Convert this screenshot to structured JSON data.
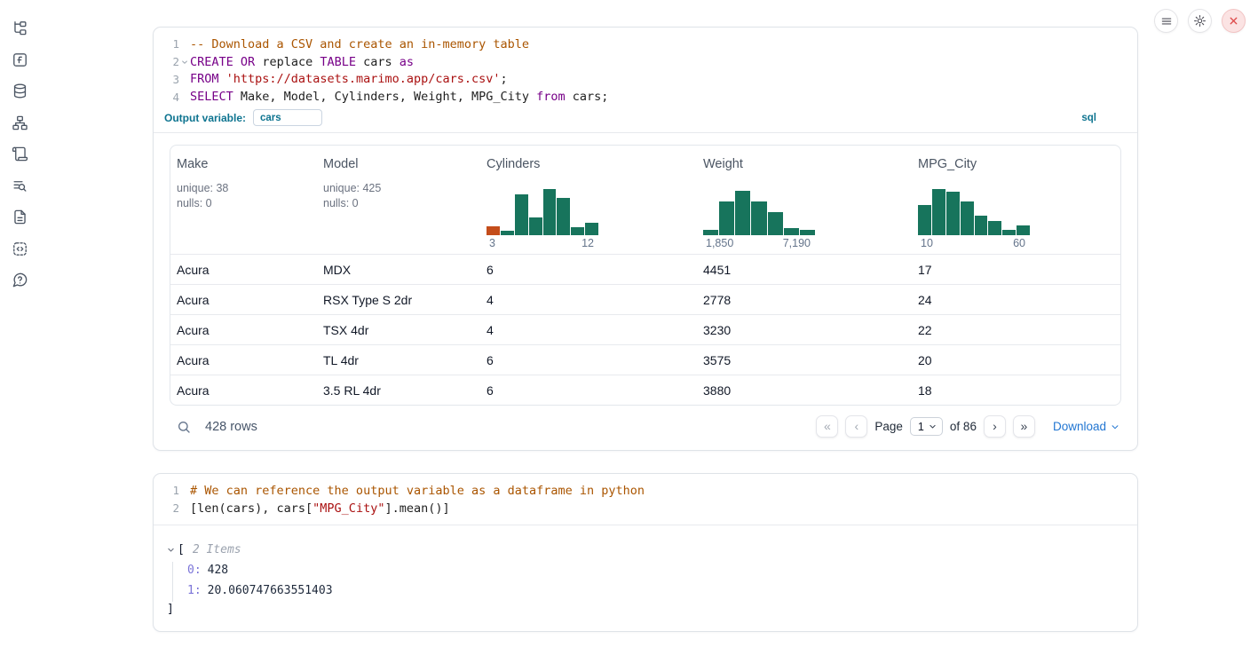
{
  "topbar": {
    "buttons": [
      "menu",
      "settings",
      "close"
    ],
    "colors": {
      "close_bg": "#fbe3e3",
      "close_border": "#f2c4c4",
      "close_x": "#dd4a4a"
    }
  },
  "sidebar": {
    "items": [
      "file-tree",
      "function-square",
      "database",
      "sitemap",
      "scroll",
      "list-search",
      "file-text",
      "code-block",
      "help-circle"
    ]
  },
  "sql_cell": {
    "lines": [
      {
        "num": "1",
        "tokens": [
          {
            "t": "-- Download a CSV and create an in-memory table",
            "c": "com"
          }
        ]
      },
      {
        "num": "2",
        "fold": true,
        "tokens": [
          {
            "t": "CREATE",
            "c": "kw"
          },
          {
            "t": " ",
            "c": "plain"
          },
          {
            "t": "OR",
            "c": "kw"
          },
          {
            "t": " replace ",
            "c": "plain"
          },
          {
            "t": "TABLE",
            "c": "kw"
          },
          {
            "t": " cars ",
            "c": "plain"
          },
          {
            "t": "as",
            "c": "kw"
          }
        ]
      },
      {
        "num": "3",
        "tokens": [
          {
            "t": "FROM",
            "c": "kw"
          },
          {
            "t": " ",
            "c": "plain"
          },
          {
            "t": "'https://datasets.marimo.app/cars.csv'",
            "c": "str"
          },
          {
            "t": ";",
            "c": "plain"
          }
        ]
      },
      {
        "num": "4",
        "tokens": [
          {
            "t": "SELECT",
            "c": "kw"
          },
          {
            "t": " Make, Model, Cylinders, Weight, MPG_City ",
            "c": "plain"
          },
          {
            "t": "from",
            "c": "kw"
          },
          {
            "t": " cars;",
            "c": "plain"
          }
        ]
      }
    ],
    "output_variable_label": "Output variable:",
    "output_variable_value": "cars",
    "language_badge": "sql"
  },
  "table": {
    "colors": {
      "bar_green": "#17745c",
      "bar_orange": "#c44d1b"
    },
    "columns": [
      {
        "name": "Make",
        "stats": [
          "unique: 38",
          "nulls: 0"
        ]
      },
      {
        "name": "Model",
        "stats": [
          "unique: 425",
          "nulls: 0"
        ]
      },
      {
        "name": "Cylinders",
        "histogram": {
          "min_label": "3",
          "max_label": "12",
          "bars": [
            {
              "h": 0.2,
              "highlight": true
            },
            {
              "h": 0.1
            },
            {
              "h": 0.88
            },
            {
              "h": 0.38
            },
            {
              "h": 1.0
            },
            {
              "h": 0.8
            },
            {
              "h": 0.18
            },
            {
              "h": 0.26
            }
          ]
        }
      },
      {
        "name": "Weight",
        "histogram": {
          "min_label": "1,850",
          "max_label": "7,190",
          "bars": [
            {
              "h": 0.12
            },
            {
              "h": 0.73
            },
            {
              "h": 0.97
            },
            {
              "h": 0.74
            },
            {
              "h": 0.5
            },
            {
              "h": 0.16
            },
            {
              "h": 0.11
            }
          ]
        }
      },
      {
        "name": "MPG_City",
        "histogram": {
          "min_label": "10",
          "max_label": "60",
          "bars": [
            {
              "h": 0.65
            },
            {
              "h": 1.0
            },
            {
              "h": 0.94
            },
            {
              "h": 0.73
            },
            {
              "h": 0.42
            },
            {
              "h": 0.3
            },
            {
              "h": 0.12
            },
            {
              "h": 0.22
            }
          ]
        }
      }
    ],
    "rows": [
      [
        "Acura",
        "MDX",
        "6",
        "4451",
        "17"
      ],
      [
        "Acura",
        "RSX Type S 2dr",
        "4",
        "2778",
        "24"
      ],
      [
        "Acura",
        "TSX 4dr",
        "4",
        "3230",
        "22"
      ],
      [
        "Acura",
        "TL 4dr",
        "6",
        "3575",
        "20"
      ],
      [
        "Acura",
        "3.5 RL 4dr",
        "6",
        "3880",
        "18"
      ]
    ],
    "footer": {
      "row_count": "428 rows",
      "page_label": "Page",
      "page_value": "1",
      "of_label": "of 86",
      "download_label": "Download",
      "nav": {
        "first": "«",
        "prev": "‹",
        "next": "›",
        "last": "»"
      }
    }
  },
  "python_cell": {
    "lines": [
      {
        "num": "1",
        "tokens": [
          {
            "t": "# We can reference the output variable as a dataframe in python",
            "c": "com"
          }
        ]
      },
      {
        "num": "2",
        "tokens": [
          {
            "t": "[len(cars), cars[",
            "c": "plain"
          },
          {
            "t": "\"MPG_City\"",
            "c": "str"
          },
          {
            "t": "].mean()]",
            "c": "plain"
          }
        ]
      }
    ],
    "output": {
      "open_bracket": "[",
      "items_label": "2 Items",
      "entries": [
        {
          "key": "0:",
          "value": "428"
        },
        {
          "key": "1:",
          "value": "20.060747663551403"
        }
      ],
      "close_bracket": "]"
    }
  }
}
